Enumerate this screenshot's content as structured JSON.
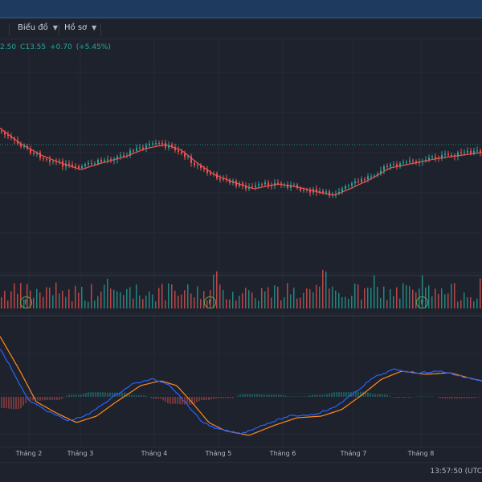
{
  "toolbar": {
    "items": [
      {
        "label": "Biểu đồ"
      },
      {
        "label": "Hồ sơ"
      }
    ]
  },
  "legend": {
    "open_fragment": "2.50",
    "close_label": "C",
    "close_value": "13.55",
    "change": "+0.70",
    "change_pct": "(+5.45%)"
  },
  "time_axis": {
    "labels": [
      "Tháng 2",
      "Tháng 3",
      "Tháng 4",
      "Tháng 5",
      "Tháng 6",
      "Tháng 7",
      "Tháng 8"
    ]
  },
  "events": [
    {
      "symbol": "F"
    },
    {
      "symbol": "F"
    },
    {
      "symbol": "F"
    }
  ],
  "status": {
    "clock": "13:57:50 (UTC"
  },
  "colors": {
    "up": "#26a69a",
    "down": "#ef5350",
    "ma_line": "#f0524f",
    "macd_line": "#2962ff",
    "signal_line": "#ff8a1f",
    "price_line": "#26a69a",
    "event_marker": "#4caf50"
  }
}
